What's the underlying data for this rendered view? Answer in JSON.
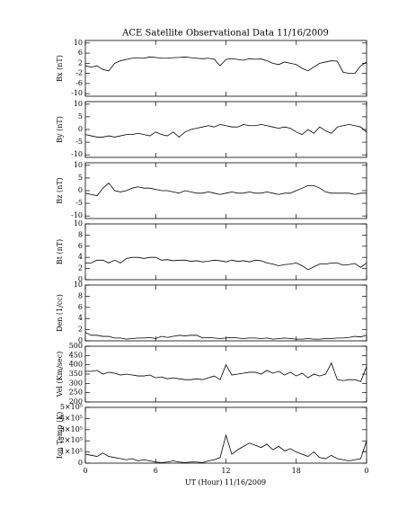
{
  "title": "ACE Satellite Observational Data   11/16/2009",
  "x_label": "UT (Hour)  11/16/2009",
  "chart_data": [
    {
      "type": "line",
      "y_label": "Bx (nT)",
      "xlim": [
        0,
        24
      ],
      "xticks": [
        0,
        6,
        12,
        18,
        {
          "value": 24,
          "label": "0"
        }
      ],
      "ylim": [
        -11,
        11
      ],
      "yticks": [
        -10,
        -6,
        -2,
        2,
        6,
        10
      ],
      "color": "#000000",
      "x": [
        0,
        0.5,
        1,
        1.5,
        2,
        2.5,
        3,
        3.5,
        4,
        4.5,
        5,
        5.5,
        6,
        6.5,
        7,
        7.5,
        8,
        8.5,
        9,
        9.5,
        10,
        10.5,
        11,
        11.5,
        12,
        12.5,
        13,
        13.5,
        14,
        14.5,
        15,
        15.5,
        16,
        16.5,
        17,
        17.5,
        18,
        18.5,
        19,
        19.5,
        20,
        20.5,
        21,
        21.5,
        22,
        22.5,
        23,
        23.5,
        24
      ],
      "values": [
        1,
        0.5,
        1,
        -0.5,
        -1,
        2,
        3,
        3.5,
        4,
        4.2,
        4,
        4.5,
        4.3,
        4,
        4,
        4.2,
        4.3,
        4.5,
        4.2,
        4,
        3.8,
        4,
        3.6,
        1,
        3.5,
        3.8,
        3.5,
        3.2,
        3.8,
        3.6,
        3.7,
        3,
        2,
        1.5,
        2.5,
        2,
        1.5,
        0,
        -1,
        0.5,
        2,
        2.5,
        3,
        2.8,
        -1.5,
        -2,
        -2,
        1,
        2.5
      ]
    },
    {
      "type": "line",
      "y_label": "By (nT)",
      "xlim": [
        0,
        24
      ],
      "xticks": [
        0,
        6,
        12,
        18,
        {
          "value": 24,
          "label": "0"
        }
      ],
      "ylim": [
        -11,
        11
      ],
      "yticks": [
        -10,
        -5,
        0,
        5,
        10
      ],
      "color": "#000000",
      "x": [
        0,
        0.5,
        1,
        1.5,
        2,
        2.5,
        3,
        3.5,
        4,
        4.5,
        5,
        5.5,
        6,
        6.5,
        7,
        7.5,
        8,
        8.5,
        9,
        9.5,
        10,
        10.5,
        11,
        11.5,
        12,
        12.5,
        13,
        13.5,
        14,
        14.5,
        15,
        15.5,
        16,
        16.5,
        17,
        17.5,
        18,
        18.5,
        19,
        19.5,
        20,
        20.5,
        21,
        21.5,
        22,
        22.5,
        23,
        23.5,
        24
      ],
      "values": [
        -2,
        -2.5,
        -3,
        -3,
        -2.5,
        -3,
        -2.5,
        -2,
        -2,
        -1.5,
        -2,
        -2.5,
        -1,
        -2,
        -2.5,
        -1,
        -3,
        -1,
        0,
        0.5,
        1,
        1.5,
        1,
        2,
        1.5,
        1,
        1,
        2,
        1.5,
        1.5,
        2,
        1.5,
        1,
        0.5,
        1,
        0.5,
        -1,
        -2,
        0,
        -1.5,
        1,
        -0.5,
        -1.5,
        1,
        1.5,
        2,
        1.5,
        1,
        -1
      ]
    },
    {
      "type": "line",
      "y_label": "Bz (nT)",
      "xlim": [
        0,
        24
      ],
      "xticks": [
        0,
        6,
        12,
        18,
        {
          "value": 24,
          "label": "0"
        }
      ],
      "ylim": [
        -11,
        11
      ],
      "yticks": [
        -10,
        -5,
        0,
        5,
        10
      ],
      "color": "#000000",
      "x": [
        0,
        0.5,
        1,
        1.5,
        2,
        2.5,
        3,
        3.5,
        4,
        4.5,
        5,
        5.5,
        6,
        6.5,
        7,
        7.5,
        8,
        8.5,
        9,
        9.5,
        10,
        10.5,
        11,
        11.5,
        12,
        12.5,
        13,
        13.5,
        14,
        14.5,
        15,
        15.5,
        16,
        16.5,
        17,
        17.5,
        18,
        18.5,
        19,
        19.5,
        20,
        20.5,
        21,
        21.5,
        22,
        22.5,
        23,
        23.5,
        24
      ],
      "values": [
        -1,
        -1.5,
        -2,
        1,
        3,
        0,
        -0.5,
        0,
        1,
        1.5,
        1,
        1,
        0.5,
        0,
        0,
        -0.5,
        -1,
        0,
        -0.5,
        -1,
        -1,
        -0.5,
        -1,
        -1.5,
        -1,
        -0.5,
        -1,
        -1,
        -0.5,
        -1,
        -1,
        -0.5,
        -1,
        -1.5,
        -1,
        -1,
        0,
        1,
        2,
        2,
        1,
        -0.5,
        -1,
        -1,
        -1,
        -1,
        -1.5,
        -1,
        -1
      ]
    },
    {
      "type": "line",
      "y_label": "Bt (nT)",
      "xlim": [
        0,
        24
      ],
      "xticks": [
        0,
        6,
        12,
        18,
        {
          "value": 24,
          "label": "0"
        }
      ],
      "ylim": [
        0,
        10
      ],
      "yticks": [
        0,
        2,
        4,
        6,
        8,
        10
      ],
      "color": "#000000",
      "x": [
        0,
        0.5,
        1,
        1.5,
        2,
        2.5,
        3,
        3.5,
        4,
        4.5,
        5,
        5.5,
        6,
        6.5,
        7,
        7.5,
        8,
        8.5,
        9,
        9.5,
        10,
        10.5,
        11,
        11.5,
        12,
        12.5,
        13,
        13.5,
        14,
        14.5,
        15,
        15.5,
        16,
        16.5,
        17,
        17.5,
        18,
        18.5,
        19,
        19.5,
        20,
        20.5,
        21,
        21.5,
        22,
        22.5,
        23,
        23.5,
        24
      ],
      "values": [
        3,
        3,
        3.5,
        3.5,
        3,
        3.5,
        3,
        3.8,
        4,
        4,
        3.8,
        4,
        4,
        3.5,
        3.6,
        3.4,
        3.5,
        3.5,
        3.3,
        3.4,
        3.2,
        3.3,
        3.5,
        3.4,
        3.2,
        3.5,
        3.3,
        3.4,
        3.2,
        3.5,
        3.4,
        3,
        2.8,
        2.5,
        2.7,
        2.8,
        3,
        2.5,
        1.8,
        2.3,
        2.8,
        2.8,
        3,
        3,
        2.6,
        2.7,
        2.9,
        2.2,
        3
      ]
    },
    {
      "type": "line",
      "y_label": "Den (1/cc)",
      "xlim": [
        0,
        24
      ],
      "xticks": [
        0,
        6,
        12,
        18,
        {
          "value": 24,
          "label": "0"
        }
      ],
      "ylim": [
        0,
        10
      ],
      "yticks": [
        0,
        2,
        4,
        6,
        8,
        10
      ],
      "color": "#000000",
      "x": [
        0,
        0.5,
        1,
        1.5,
        2,
        2.5,
        3,
        3.5,
        4,
        4.5,
        5,
        5.5,
        6,
        6.5,
        7,
        7.5,
        8,
        8.5,
        9,
        9.5,
        10,
        10.5,
        11,
        11.5,
        12,
        12.5,
        13,
        13.5,
        14,
        14.5,
        15,
        15.5,
        16,
        16.5,
        17,
        17.5,
        18,
        18.5,
        19,
        19.5,
        20,
        20.5,
        21,
        21.5,
        22,
        22.5,
        23,
        23.5,
        24
      ],
      "values": [
        1.5,
        1,
        1,
        0.8,
        0.8,
        0.5,
        0.5,
        0.3,
        0.4,
        0.5,
        0.5,
        0.6,
        0.4,
        0.8,
        0.6,
        0.8,
        1,
        0.9,
        1,
        1,
        0.5,
        0.6,
        0.5,
        0.4,
        0.5,
        0.6,
        0.5,
        0.4,
        0.5,
        0.5,
        0.4,
        0.5,
        0.3,
        0.4,
        0.5,
        0.4,
        0.3,
        0.3,
        0.4,
        0.3,
        0.3,
        0.4,
        0.4,
        0.5,
        0.5,
        0.6,
        0.8,
        0.7,
        1
      ]
    },
    {
      "type": "line",
      "y_label": "Vel (Km/sec)",
      "xlim": [
        0,
        24
      ],
      "xticks": [
        0,
        6,
        12,
        18,
        {
          "value": 24,
          "label": "0"
        }
      ],
      "ylim": [
        200,
        500
      ],
      "yticks": [
        200,
        250,
        300,
        350,
        400,
        450,
        500
      ],
      "color": "#000000",
      "x": [
        0,
        0.5,
        1,
        1.5,
        2,
        2.5,
        3,
        3.5,
        4,
        4.5,
        5,
        5.5,
        6,
        6.5,
        7,
        7.5,
        8,
        8.5,
        9,
        9.5,
        10,
        10.5,
        11,
        11.5,
        12,
        12.5,
        13,
        13.5,
        14,
        14.5,
        15,
        15.5,
        16,
        16.5,
        17,
        17.5,
        18,
        18.5,
        19,
        19.5,
        20,
        20.5,
        21,
        21.5,
        22,
        22.5,
        23,
        23.5,
        24
      ],
      "values": [
        365,
        365,
        370,
        350,
        360,
        355,
        345,
        350,
        345,
        340,
        340,
        345,
        330,
        335,
        325,
        330,
        325,
        320,
        320,
        325,
        320,
        330,
        340,
        320,
        400,
        345,
        350,
        355,
        360,
        360,
        350,
        370,
        355,
        365,
        345,
        360,
        340,
        355,
        330,
        350,
        340,
        350,
        410,
        320,
        315,
        320,
        320,
        310,
        390
      ]
    },
    {
      "type": "line",
      "y_label": "Ion Temp (K)",
      "xlim": [
        0,
        24
      ],
      "xticks": [
        0,
        6,
        12,
        18,
        {
          "value": 24,
          "label": "0"
        }
      ],
      "ylim": [
        0,
        500000
      ],
      "yticks": [
        0,
        {
          "value": 100000,
          "label": "1×10⁵"
        },
        {
          "value": 200000,
          "label": "2×10⁵"
        },
        {
          "value": 300000,
          "label": "3×10⁵"
        },
        {
          "value": 400000,
          "label": "4×10⁵"
        },
        {
          "value": 500000,
          "label": "5×10⁵"
        }
      ],
      "color": "#000000",
      "x": [
        0,
        0.5,
        1,
        1.5,
        2,
        2.5,
        3,
        3.5,
        4,
        4.5,
        5,
        5.5,
        6,
        6.5,
        7,
        7.5,
        8,
        8.5,
        9,
        9.5,
        10,
        10.5,
        11,
        11.5,
        12,
        12.5,
        13,
        13.5,
        14,
        14.5,
        15,
        15.5,
        16,
        16.5,
        17,
        17.5,
        18,
        18.5,
        19,
        19.5,
        20,
        20.5,
        21,
        21.5,
        22,
        22.5,
        23,
        23.5,
        24
      ],
      "values": [
        80000,
        70000,
        60000,
        90000,
        60000,
        50000,
        40000,
        30000,
        40000,
        20000,
        30000,
        20000,
        10000,
        5000,
        10000,
        20000,
        10000,
        5000,
        10000,
        10000,
        5000,
        20000,
        30000,
        50000,
        250000,
        80000,
        120000,
        150000,
        180000,
        160000,
        140000,
        170000,
        120000,
        150000,
        110000,
        130000,
        100000,
        80000,
        60000,
        100000,
        50000,
        40000,
        70000,
        40000,
        30000,
        20000,
        30000,
        40000,
        200000
      ]
    }
  ]
}
